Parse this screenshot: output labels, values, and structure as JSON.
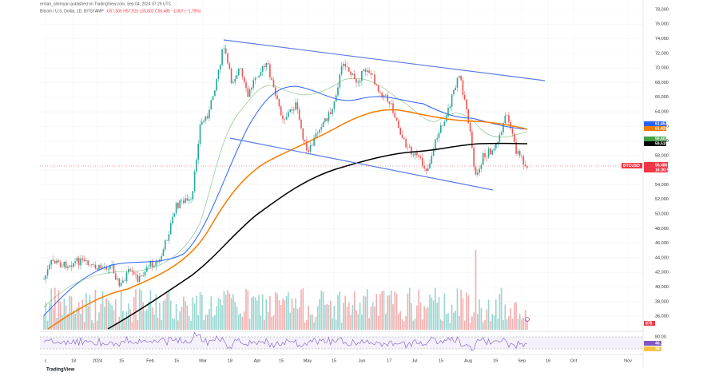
{
  "header": {
    "author": "erman_shirinyan published on TradingView.com, Sep 04, 2024 07:29 UTC",
    "symbol": "Bitcoin / U.S. Dollar, 1D, BITSTAMP",
    "ohlc": "O57,506 H57,915 L55,602 C56,486 −1,007 (−1.75%)"
  },
  "price_axis": [
    "78,000",
    "76,000",
    "74,000",
    "72,000",
    "70,000",
    "68,000",
    "66,000",
    "64,000",
    "62,000",
    "60,000",
    "58,000",
    "56,000",
    "54,000",
    "52,000",
    "50,000",
    "48,000",
    "46,000",
    "44,000",
    "42,000",
    "40,000",
    "38,000",
    "36,000"
  ],
  "time_axis": [
    "c",
    "18",
    "2024",
    "15",
    "Feb",
    "15",
    "Mar",
    "18",
    "Apr",
    "15",
    "May",
    "15",
    "Jun",
    "17",
    "Jul",
    "15",
    "Aug",
    "19",
    "Sep",
    "16",
    "Oct",
    "Nov"
  ],
  "price_tags": [
    {
      "text": "61,457",
      "color": "#2962ff"
    },
    {
      "text": "61,424",
      "color": "#f57c00"
    },
    {
      "text": "59,807",
      "color": "#43a047"
    },
    {
      "text": "59,519",
      "color": "#000000"
    }
  ],
  "last_price": {
    "symbol": "BTCUSD",
    "price": "56,486",
    "countdown": "16:30:55",
    "color": "#f23645"
  },
  "volume_tag": "878",
  "rsi_axis": [
    "80.00",
    "40.14",
    "39.79"
  ],
  "logo": "TradingView"
}
